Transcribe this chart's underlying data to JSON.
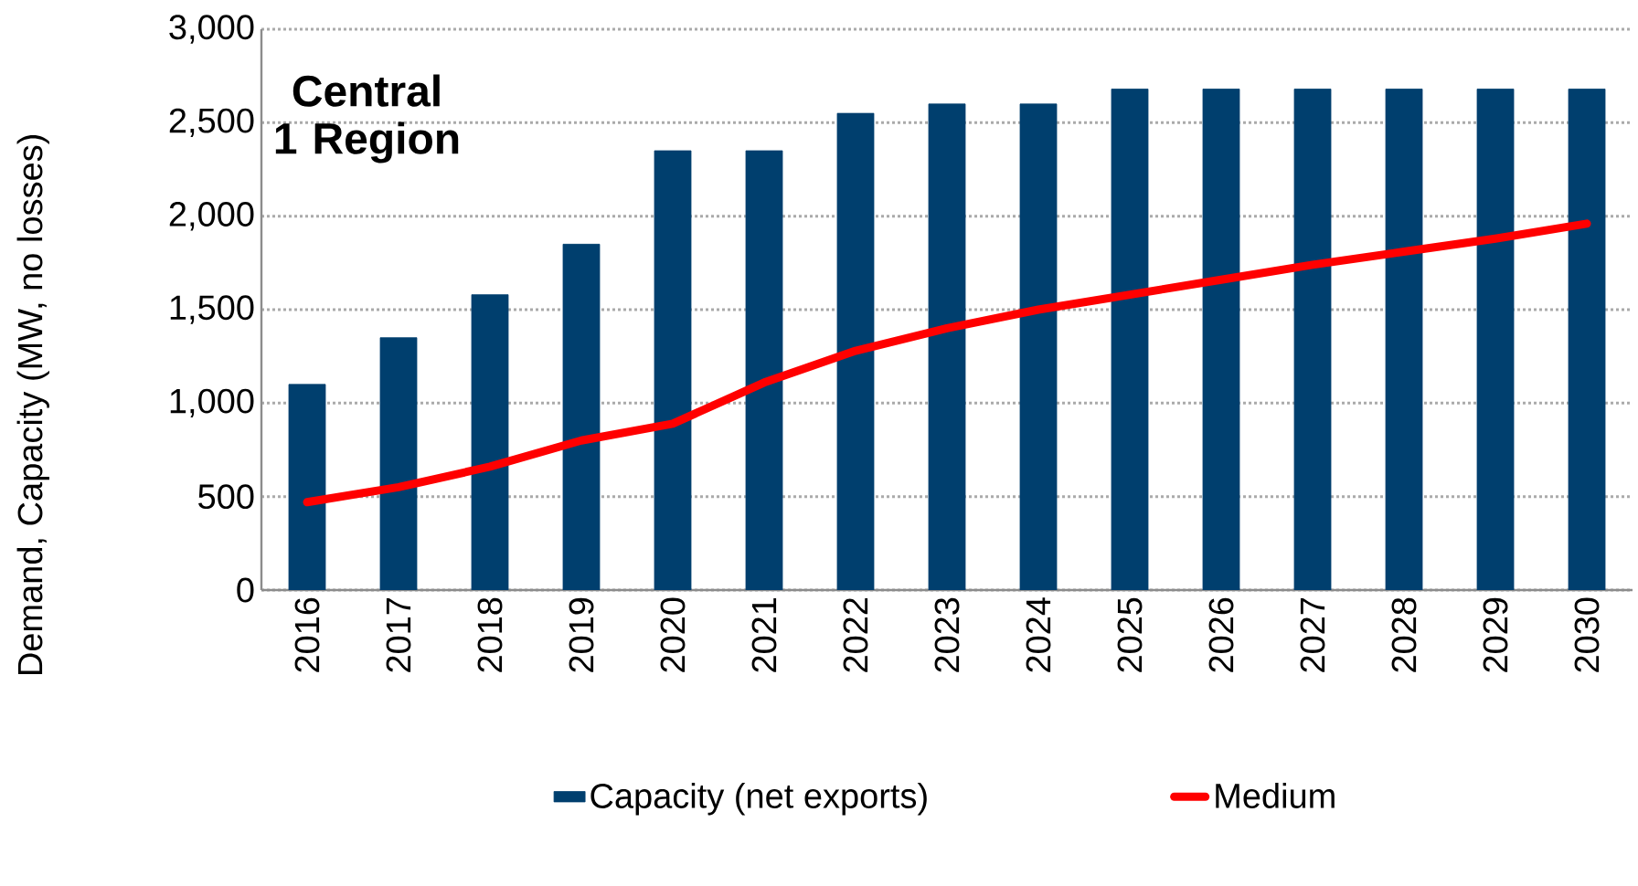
{
  "chart_data": {
    "type": "bar",
    "title": "Central 1 Region",
    "ylabel": "Demand, Capacity (MW, no losses)",
    "categories": [
      "2016",
      "2017",
      "2018",
      "2019",
      "2020",
      "2021",
      "2022",
      "2023",
      "2024",
      "2025",
      "2026",
      "2027",
      "2028",
      "2029",
      "2030"
    ],
    "series": [
      {
        "name": "Capacity (net exports)",
        "color": "#003f6e",
        "values": [
          1100,
          1350,
          1580,
          1850,
          2350,
          2350,
          2550,
          2600,
          2600,
          2680,
          2680,
          2680,
          2680,
          2680,
          2680
        ]
      },
      {
        "name": "Medium",
        "type": "line",
        "color": "#ff0000",
        "values": [
          470,
          550,
          660,
          800,
          890,
          1110,
          1280,
          1400,
          1500,
          1580,
          1660,
          1740,
          1810,
          1880,
          1960
        ]
      }
    ],
    "ylim": [
      0,
      3000
    ],
    "yticks": [
      0,
      {
        "value": 500,
        "label": "500"
      },
      {
        "value": 1000,
        "label": "1,000"
      },
      {
        "value": 1500,
        "label": "1,500"
      },
      {
        "value": 2000,
        "label": "2,000"
      },
      {
        "value": 2500,
        "label": "2,500"
      },
      {
        "value": 3000,
        "label": "3,000"
      }
    ],
    "grid": "y",
    "legend": "bottom",
    "marker": "none",
    "line_style": "solid"
  }
}
